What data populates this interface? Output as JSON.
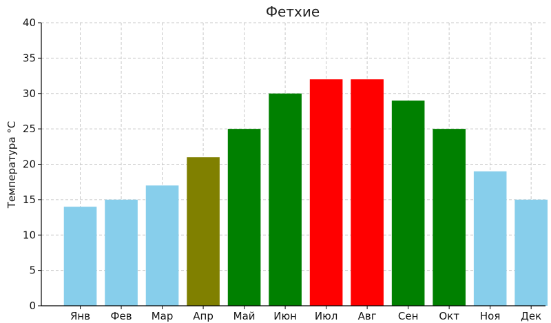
{
  "chart_data": {
    "type": "bar",
    "title": "Фетхие",
    "xlabel": "",
    "ylabel": "Температура °C",
    "ylim": [
      0,
      40
    ],
    "yticks": [
      0,
      5,
      10,
      15,
      20,
      25,
      30,
      35,
      40
    ],
    "grid": true,
    "categories": [
      "Янв",
      "Фев",
      "Мар",
      "Апр",
      "Май",
      "Июн",
      "Июл",
      "Авг",
      "Сен",
      "Окт",
      "Ноя",
      "Дек"
    ],
    "values": [
      14,
      15,
      17,
      21,
      25,
      30,
      32,
      32,
      29,
      25,
      19,
      15
    ],
    "colors": [
      "#87ceeb",
      "#87ceeb",
      "#87ceeb",
      "#808000",
      "#008000",
      "#008000",
      "#ff0000",
      "#ff0000",
      "#008000",
      "#008000",
      "#87ceeb",
      "#87ceeb"
    ]
  }
}
